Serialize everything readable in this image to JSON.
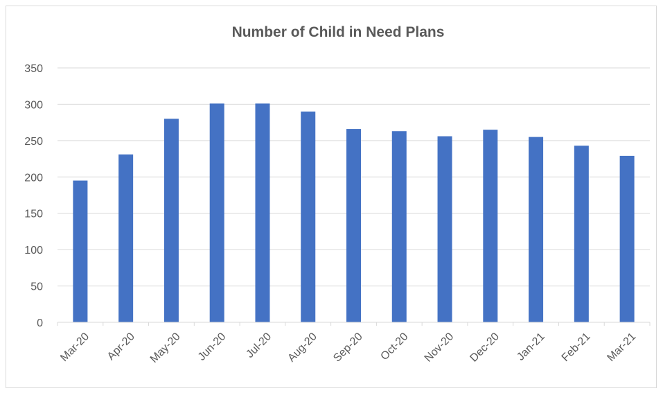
{
  "chart_data": {
    "type": "bar",
    "title": "Number of Child in Need Plans",
    "xlabel": "",
    "ylabel": "",
    "categories": [
      "Mar-20",
      "Apr-20",
      "May-20",
      "Jun-20",
      "Jul-20",
      "Aug-20",
      "Sep-20",
      "Oct-20",
      "Nov-20",
      "Dec-20",
      "Jan-21",
      "Feb-21",
      "Mar-21"
    ],
    "values": [
      195,
      231,
      280,
      301,
      301,
      290,
      266,
      263,
      256,
      265,
      255,
      243,
      229
    ],
    "ylim": [
      0,
      350
    ],
    "yticks": [
      0,
      50,
      100,
      150,
      200,
      250,
      300,
      350
    ],
    "grid": true,
    "legend": "none",
    "bar_color": "#4472c4",
    "grid_color": "#d9d9d9",
    "text_color": "#595959"
  }
}
